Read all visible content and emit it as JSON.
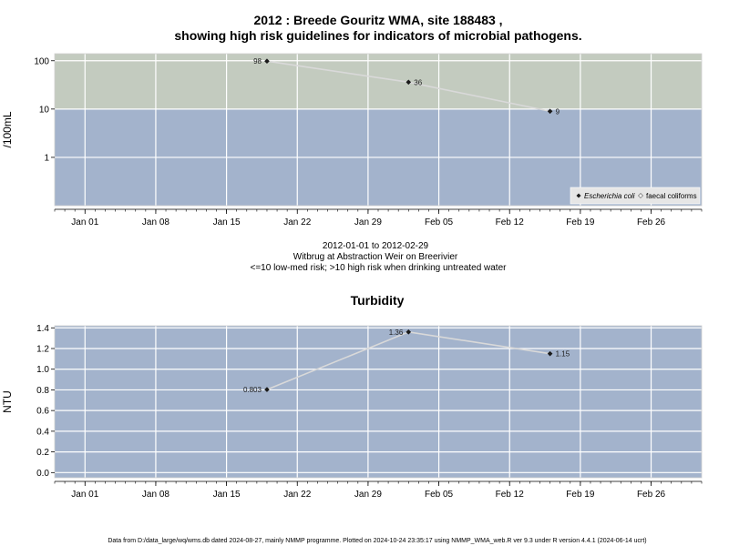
{
  "title_line1": "2012 : Breede Gouritz WMA, site 188483 ,",
  "title_line2": "showing high risk guidelines for indicators of microbial pathogens.",
  "subtitle_lines": [
    "2012-01-01 to 2012-02-29",
    "Witbrug at Abstraction Weir on Breerivier",
    "<=10 low-med risk; >10 high risk when drinking untreated water"
  ],
  "footer": "Data from D:/data_large/wq/wms.db dated 2024-08-27, mainly NMMP programme. Plotted on 2024-10-24 23:35:17 using NMMP_WMA_web.R ver 9.3 under R version 4.4.1 (2024-06-14 ucrt)",
  "colors": {
    "background_low": "#a3b3cc",
    "background_high": "#c3cbbf",
    "grid": "#ffffff",
    "series_line": "#d9d9d9",
    "point": "#1a1a1a"
  },
  "chart_data": [
    {
      "type": "line",
      "title": "",
      "ylabel": "/100mL",
      "y_scale": "log",
      "ylim": [
        0.1,
        140
      ],
      "yticks": [
        "1",
        "10",
        "100"
      ],
      "risk_threshold": 10,
      "x_range": [
        "2011-12-29",
        "2012-03-02"
      ],
      "xticks": [
        "Jan 01",
        "Jan 08",
        "Jan 15",
        "Jan 22",
        "Jan 29",
        "Feb 05",
        "Feb 12",
        "Feb 19",
        "Feb 26"
      ],
      "xtick_dates": [
        "2012-01-01",
        "2012-01-08",
        "2012-01-15",
        "2012-01-22",
        "2012-01-29",
        "2012-02-05",
        "2012-02-12",
        "2012-02-19",
        "2012-02-26"
      ],
      "series": [
        {
          "name": "Escherichia coli",
          "x": [
            "2012-01-19",
            "2012-02-02",
            "2012-02-16"
          ],
          "y": [
            98,
            36,
            9
          ],
          "labels": [
            "98",
            "36",
            "9"
          ]
        }
      ],
      "legend": {
        "placement": "bottom-right",
        "entries": [
          "Escherichia coli",
          "faecal coliforms"
        ]
      },
      "grid": true
    },
    {
      "type": "line",
      "title": "Turbidity",
      "ylabel": "NTU",
      "y_scale": "linear",
      "ylim": [
        -0.05,
        1.42
      ],
      "yticks": [
        "0.0",
        "0.2",
        "0.4",
        "0.6",
        "0.8",
        "1.0",
        "1.2",
        "1.4"
      ],
      "x_range": [
        "2011-12-29",
        "2012-03-02"
      ],
      "xticks": [
        "Jan 01",
        "Jan 08",
        "Jan 15",
        "Jan 22",
        "Jan 29",
        "Feb 05",
        "Feb 12",
        "Feb 19",
        "Feb 26"
      ],
      "xtick_dates": [
        "2012-01-01",
        "2012-01-08",
        "2012-01-15",
        "2012-01-22",
        "2012-01-29",
        "2012-02-05",
        "2012-02-12",
        "2012-02-19",
        "2012-02-26"
      ],
      "series": [
        {
          "x": [
            "2012-01-19",
            "2012-02-02",
            "2012-02-16"
          ],
          "y": [
            0.803,
            1.36,
            1.15
          ],
          "labels": [
            "0.803",
            "1.36",
            "1.15"
          ]
        }
      ],
      "grid": true
    }
  ]
}
